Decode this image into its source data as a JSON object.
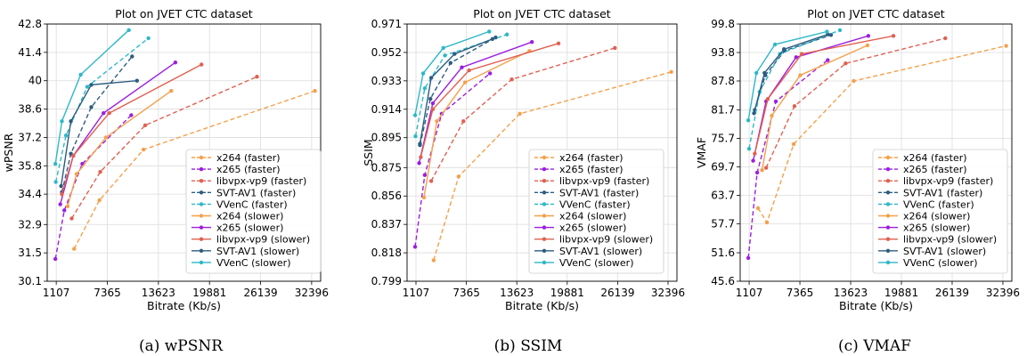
{
  "chart_data": [
    {
      "type": "line",
      "title": "Plot on JVET CTC dataset",
      "xlabel": "Bitrate (Kb/s)",
      "ylabel": "wPSNR",
      "caption": "(a) wPSNR",
      "xlim": [
        0,
        33500
      ],
      "ylim": [
        30.1,
        42.8
      ],
      "xticks": [
        1107,
        7365,
        13623,
        19881,
        26139,
        32396
      ],
      "yticks": [
        30.1,
        31.5,
        32.9,
        34.4,
        35.8,
        37.2,
        38.6,
        40.0,
        41.4,
        42.8
      ],
      "grid": true,
      "legend_position": "bottom-right",
      "series": [
        {
          "name": "x264 (faster)",
          "color": "#f5a04a",
          "dash": true,
          "x": [
            3300,
            6400,
            11800,
            32800
          ],
          "y": [
            31.7,
            34.1,
            36.6,
            39.5
          ]
        },
        {
          "name": "x265 (faster)",
          "color": "#9b1ee0",
          "dash": true,
          "x": [
            1000,
            2100,
            4300,
            10300
          ],
          "y": [
            31.2,
            33.6,
            35.9,
            38.3
          ]
        },
        {
          "name": "libvpx-vp9 (faster)",
          "color": "#e06050",
          "dash": true,
          "x": [
            3000,
            6500,
            12000,
            25700
          ],
          "y": [
            33.2,
            35.5,
            37.8,
            40.2
          ]
        },
        {
          "name": "SVT-AV1 (faster)",
          "color": "#2c5d80",
          "dash": true,
          "x": [
            1800,
            2900,
            5400,
            10400
          ],
          "y": [
            34.5,
            36.4,
            38.7,
            41.2
          ]
        },
        {
          "name": "VVenC (faster)",
          "color": "#2db8c8",
          "dash": true,
          "x": [
            1050,
            2300,
            4900,
            12400
          ],
          "y": [
            35.0,
            37.3,
            39.7,
            42.1
          ]
        },
        {
          "name": "x264 (slower)",
          "color": "#f5a04a",
          "dash": false,
          "x": [
            2500,
            3600,
            7200,
            15200
          ],
          "y": [
            33.8,
            35.4,
            37.2,
            39.5
          ]
        },
        {
          "name": "x265 (slower)",
          "color": "#9b1ee0",
          "dash": false,
          "x": [
            1600,
            3200,
            6900,
            15700
          ],
          "y": [
            33.9,
            36.3,
            38.4,
            40.9
          ]
        },
        {
          "name": "libvpx-vp9 (slower)",
          "color": "#e06050",
          "dash": false,
          "x": [
            1800,
            3200,
            7600,
            18900
          ],
          "y": [
            34.4,
            36.3,
            38.4,
            40.8
          ]
        },
        {
          "name": "SVT-AV1 (slower)",
          "color": "#2c5d80",
          "dash": false,
          "x": [
            1700,
            2900,
            5400,
            11000
          ],
          "y": [
            34.8,
            38.0,
            39.8,
            40.0
          ]
        },
        {
          "name": "VVenC (slower)",
          "color": "#2db8c8",
          "dash": false,
          "x": [
            1000,
            1800,
            4100,
            10000
          ],
          "y": [
            35.9,
            38.0,
            40.3,
            42.5
          ]
        }
      ]
    },
    {
      "type": "line",
      "title": "Plot on JVET CTC dataset",
      "xlabel": "Bitrate (Kb/s)",
      "ylabel": "SSIM",
      "caption": "(b) SSIM",
      "xlim": [
        0,
        33500
      ],
      "ylim": [
        0.799,
        0.971
      ],
      "xticks": [
        1107,
        7365,
        13623,
        19881,
        26139,
        32396
      ],
      "yticks": [
        0.799,
        0.818,
        0.837,
        0.856,
        0.875,
        0.895,
        0.914,
        0.933,
        0.952,
        0.971
      ],
      "grid": true,
      "legend_position": "bottom-right",
      "series": [
        {
          "name": "x264 (faster)",
          "color": "#f5a04a",
          "dash": true,
          "x": [
            3300,
            6400,
            14000,
            32800
          ],
          "y": [
            0.813,
            0.869,
            0.911,
            0.939
          ]
        },
        {
          "name": "x265 (faster)",
          "color": "#9b1ee0",
          "dash": true,
          "x": [
            1000,
            2200,
            4300,
            10300
          ],
          "y": [
            0.822,
            0.87,
            0.911,
            0.938
          ]
        },
        {
          "name": "libvpx-vp9 (faster)",
          "color": "#e06050",
          "dash": true,
          "x": [
            3000,
            7000,
            13000,
            25800
          ],
          "y": [
            0.866,
            0.906,
            0.934,
            0.955
          ]
        },
        {
          "name": "SVT-AV1 (faster)",
          "color": "#2c5d80",
          "dash": true,
          "x": [
            1600,
            2900,
            5400,
            11000
          ],
          "y": [
            0.89,
            0.921,
            0.945,
            0.962
          ]
        },
        {
          "name": "VVenC (faster)",
          "color": "#2db8c8",
          "dash": true,
          "x": [
            1050,
            2200,
            4700,
            12400
          ],
          "y": [
            0.896,
            0.928,
            0.95,
            0.964
          ]
        },
        {
          "name": "x264 (slower)",
          "color": "#f5a04a",
          "dash": false,
          "x": [
            2100,
            3700,
            7200,
            15200
          ],
          "y": [
            0.855,
            0.906,
            0.932,
            0.953
          ]
        },
        {
          "name": "x265 (slower)",
          "color": "#9b1ee0",
          "dash": false,
          "x": [
            1500,
            3200,
            6800,
            15500
          ],
          "y": [
            0.878,
            0.918,
            0.942,
            0.959
          ]
        },
        {
          "name": "libvpx-vp9 (slower)",
          "color": "#e06050",
          "dash": false,
          "x": [
            1700,
            3200,
            7700,
            18800
          ],
          "y": [
            0.882,
            0.914,
            0.94,
            0.958
          ]
        },
        {
          "name": "SVT-AV1 (slower)",
          "color": "#2c5d80",
          "dash": false,
          "x": [
            1600,
            3000,
            5900,
            10600
          ],
          "y": [
            0.891,
            0.935,
            0.951,
            0.961
          ]
        },
        {
          "name": "VVenC (slower)",
          "color": "#2db8c8",
          "dash": false,
          "x": [
            1000,
            2000,
            4500,
            10200
          ],
          "y": [
            0.91,
            0.938,
            0.955,
            0.966
          ]
        }
      ]
    },
    {
      "type": "line",
      "title": "Plot on JVET CTC dataset",
      "xlabel": "Bitrate (Kb/s)",
      "ylabel": "VMAF",
      "caption": "(c) VMAF",
      "xlim": [
        0,
        33500
      ],
      "ylim": [
        45.6,
        99.8
      ],
      "xticks": [
        1107,
        7365,
        13623,
        19881,
        26139,
        32396
      ],
      "yticks": [
        45.6,
        51.6,
        57.7,
        63.7,
        69.7,
        75.7,
        81.7,
        87.8,
        93.8,
        99.8
      ],
      "grid": true,
      "legend_position": "bottom-right",
      "series": [
        {
          "name": "x264 (faster)",
          "color": "#f5a04a",
          "dash": true,
          "x": [
            2200,
            3300,
            6600,
            14000,
            32800
          ],
          "y": [
            61.0,
            58.0,
            74.5,
            87.8,
            95.2
          ]
        },
        {
          "name": "x265 (faster)",
          "color": "#9b1ee0",
          "dash": true,
          "x": [
            1000,
            2100,
            4400,
            10800
          ],
          "y": [
            50.5,
            68.5,
            83.5,
            92.2
          ]
        },
        {
          "name": "libvpx-vp9 (faster)",
          "color": "#e06050",
          "dash": true,
          "x": [
            3200,
            6700,
            13000,
            25300
          ],
          "y": [
            69.5,
            82.5,
            91.5,
            96.8
          ]
        },
        {
          "name": "SVT-AV1 (faster)",
          "color": "#2c5d80",
          "dash": true,
          "x": [
            1800,
            3100,
            5500,
            11200
          ],
          "y": [
            81.7,
            89.0,
            94.2,
            97.5
          ]
        },
        {
          "name": "VVenC (faster)",
          "color": "#2db8c8",
          "dash": true,
          "x": [
            1100,
            2400,
            4900,
            12300
          ],
          "y": [
            73.5,
            85.5,
            93.5,
            98.5
          ]
        },
        {
          "name": "x264 (slower)",
          "color": "#f5a04a",
          "dash": false,
          "x": [
            2700,
            3900,
            7400,
            15700
          ],
          "y": [
            69.0,
            80.5,
            89.0,
            95.3
          ]
        },
        {
          "name": "x265 (slower)",
          "color": "#9b1ee0",
          "dash": false,
          "x": [
            1600,
            3200,
            6900,
            15800
          ],
          "y": [
            71.0,
            83.5,
            92.8,
            97.3
          ]
        },
        {
          "name": "libvpx-vp9 (slower)",
          "color": "#e06050",
          "dash": false,
          "x": [
            1800,
            3400,
            7600,
            18900
          ],
          "y": [
            72.5,
            84.0,
            93.5,
            97.3
          ]
        },
        {
          "name": "SVT-AV1 (slower)",
          "color": "#2c5d80",
          "dash": false,
          "x": [
            1700,
            3000,
            5400,
            10800
          ],
          "y": [
            81.0,
            89.5,
            94.5,
            97.6
          ]
        },
        {
          "name": "VVenC (slower)",
          "color": "#2db8c8",
          "dash": false,
          "x": [
            1000,
            2000,
            4300,
            10700
          ],
          "y": [
            79.5,
            89.5,
            95.5,
            98.2
          ]
        }
      ]
    }
  ]
}
